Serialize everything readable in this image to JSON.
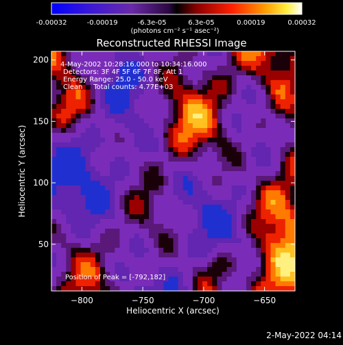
{
  "colorbar": {
    "tick_labels": [
      "-0.00032",
      "-0.00019",
      "-6.3e-05",
      "6.3e-05",
      "0.00019",
      "0.00032"
    ],
    "tick_values": [
      -0.00032,
      -0.00019,
      -6.3e-05,
      6.3e-05,
      0.00019,
      0.00032
    ],
    "range": [
      -0.00032,
      0.00032
    ],
    "unit_label": "(photons cm⁻² s⁻¹ asec⁻²)",
    "colors": [
      "#0000ff",
      "#3a18d8",
      "#6a2aa8",
      "#5a2090",
      "#000000",
      "#8a0000",
      "#ff2000",
      "#ff9a00",
      "#ffee40",
      "#ffffff"
    ]
  },
  "chart_data": {
    "type": "heatmap",
    "title": "Reconstructed RHESSI Image",
    "xlabel": "Heliocentric X (arcsec)",
    "ylabel": "Heliocentric Y (arcsec)",
    "xlim": [
      -825,
      -625
    ],
    "ylim": [
      12,
      207
    ],
    "x_ticks": [
      -800,
      -750,
      -700,
      -650
    ],
    "x_tick_labels": [
      "−800",
      "−750",
      "−700",
      "−650"
    ],
    "y_ticks": [
      50,
      100,
      150,
      200
    ],
    "y_tick_labels": [
      "50",
      "100",
      "150",
      "200"
    ],
    "annotations": [
      "4-May-2002 10:28:16.000 to 10:34:16.000",
      "Detectors: 3F 4F 5F 6F 7F 8F, Att 1",
      "Energy Range: 25.0 - 50.0 keV",
      "Clean     Total counts: 4.77E+03"
    ],
    "peak_label": "Position of Peak = [-792,182]",
    "peak": [
      -792,
      182
    ]
  },
  "footer": {
    "timestamp": "2-May-2022 04:14"
  }
}
